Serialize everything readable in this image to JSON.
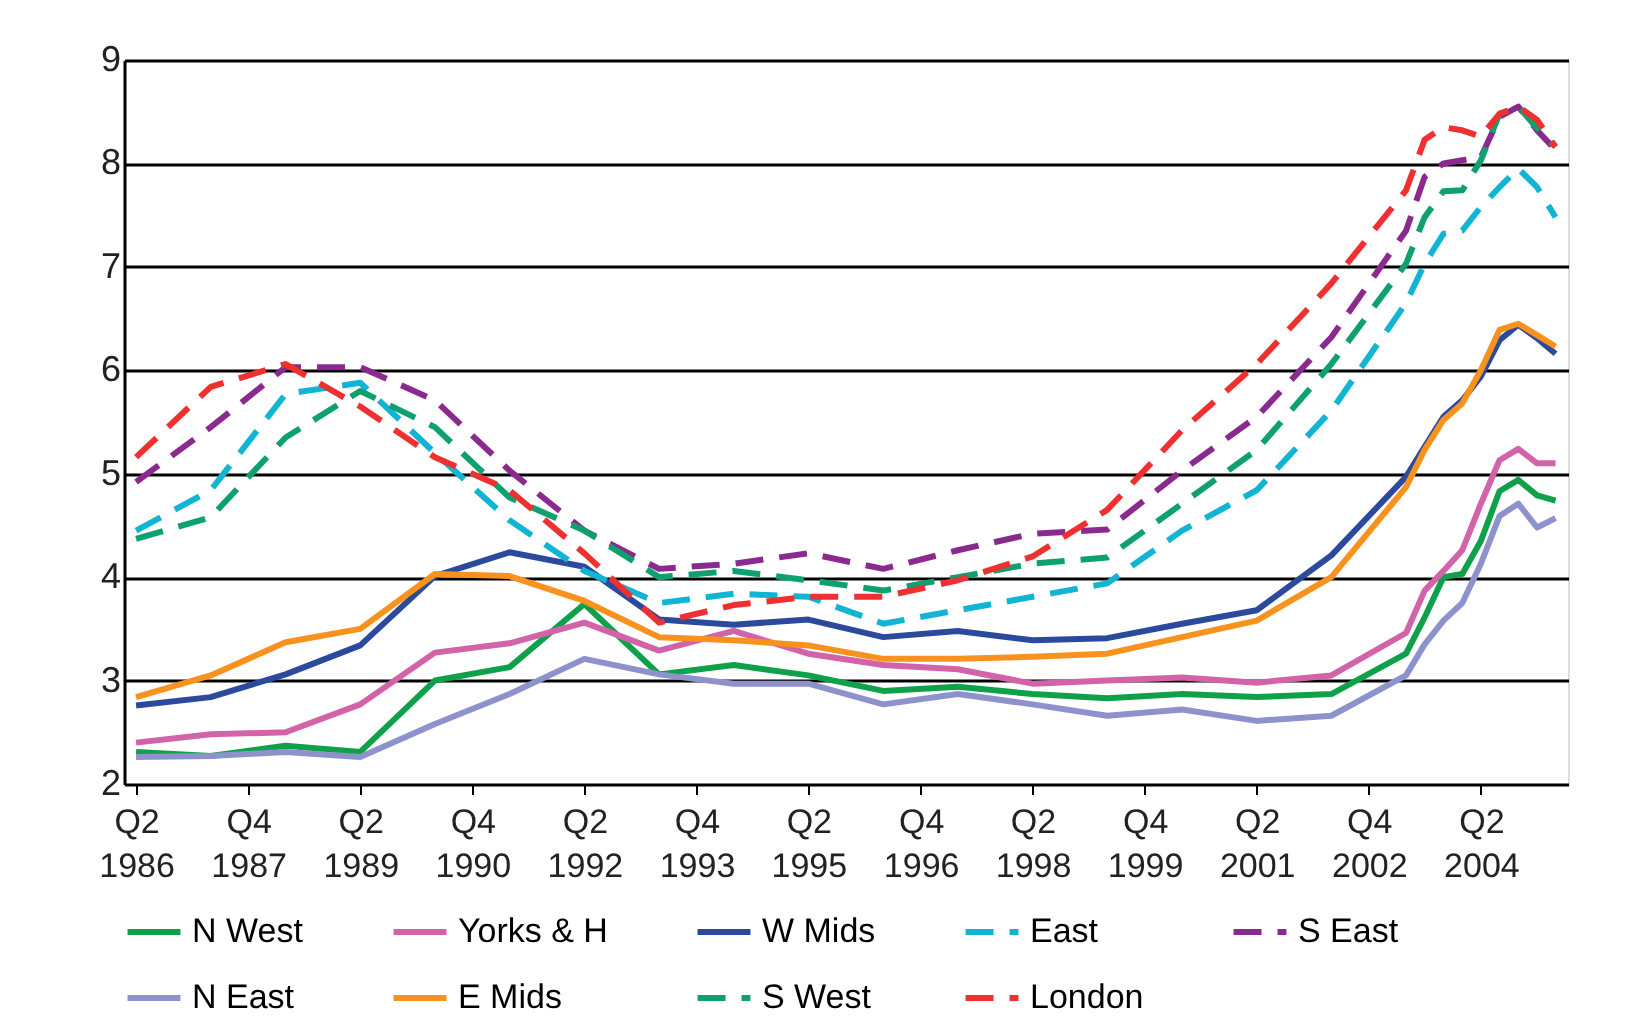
{
  "chart_data": {
    "type": "line",
    "x": [
      "1986-04",
      "1987-04",
      "1988-04",
      "1989-04",
      "1990-04",
      "1991-04",
      "1992-04",
      "1993-04",
      "1994-04",
      "1995-04",
      "1996-04",
      "1997-04",
      "1998-04",
      "1999-04",
      "2000-04",
      "2001-04",
      "2002-04",
      "2003-04",
      "2003-07",
      "2003-10",
      "2004-01",
      "2004-04",
      "2004-07",
      "2004-10",
      "2005-01",
      "2005-04"
    ],
    "xlim": [
      "1986-02",
      "2005-06"
    ],
    "xticks": [
      {
        "value": "1986-04",
        "label": "Q2 1986"
      },
      {
        "value": "1987-10",
        "label": "Q4 1987"
      },
      {
        "value": "1989-04",
        "label": "Q2 1989"
      },
      {
        "value": "1990-10",
        "label": "Q4 1990"
      },
      {
        "value": "1992-04",
        "label": "Q2 1992"
      },
      {
        "value": "1993-10",
        "label": "Q4 1993"
      },
      {
        "value": "1995-04",
        "label": "Q2 1995"
      },
      {
        "value": "1996-10",
        "label": "Q4 1996"
      },
      {
        "value": "1998-04",
        "label": "Q2 1998"
      },
      {
        "value": "1999-10",
        "label": "Q4 1999"
      },
      {
        "value": "2001-04",
        "label": "Q2 2001"
      },
      {
        "value": "2002-10",
        "label": "Q4 2002"
      },
      {
        "value": "2004-04",
        "label": "Q2 2004"
      }
    ],
    "ylim": [
      2,
      9
    ],
    "yticks": [
      2,
      3,
      4,
      5,
      6,
      7,
      8,
      9
    ],
    "grid": "y",
    "legend": "bottom",
    "series": [
      {
        "name": "N West",
        "color": "#0fa04a",
        "line_style": "solid",
        "values": [
          2.31,
          2.27,
          2.37,
          2.31,
          3.0,
          3.13,
          3.74,
          3.06,
          3.15,
          3.05,
          2.9,
          2.94,
          2.87,
          2.83,
          2.87,
          2.84,
          2.87,
          3.26,
          3.61,
          4.0,
          4.03,
          4.35,
          4.83,
          4.94,
          4.79,
          4.74
        ]
      },
      {
        "name": "Yorks & H",
        "color": "#d263a8",
        "line_style": "solid",
        "values": [
          2.4,
          2.48,
          2.5,
          2.77,
          3.27,
          3.36,
          3.56,
          3.29,
          3.48,
          3.26,
          3.15,
          3.11,
          2.97,
          3.0,
          3.03,
          2.98,
          3.05,
          3.46,
          3.87,
          4.06,
          4.26,
          4.71,
          5.13,
          5.24,
          5.1,
          5.1
        ]
      },
      {
        "name": "W Mids",
        "color": "#2b4a9e",
        "line_style": "solid",
        "values": [
          2.76,
          2.84,
          3.06,
          3.34,
          4.01,
          4.24,
          4.1,
          3.59,
          3.54,
          3.59,
          3.42,
          3.48,
          3.39,
          3.41,
          3.55,
          3.68,
          4.21,
          4.97,
          5.26,
          5.55,
          5.71,
          5.94,
          6.29,
          6.44,
          6.31,
          6.16
        ]
      },
      {
        "name": "East",
        "color": "#12b4d4",
        "line_style": "dashed",
        "values": [
          4.45,
          4.84,
          5.77,
          5.88,
          5.2,
          4.55,
          4.06,
          3.75,
          3.84,
          3.81,
          3.55,
          3.68,
          3.81,
          3.94,
          4.45,
          4.84,
          5.61,
          6.65,
          7.03,
          7.32,
          7.35,
          7.58,
          7.77,
          7.95,
          7.77,
          7.48
        ]
      },
      {
        "name": "S East",
        "color": "#8b2a8e",
        "line_style": "dashed",
        "values": [
          4.92,
          5.45,
          6.03,
          6.03,
          5.71,
          5.03,
          4.45,
          4.08,
          4.13,
          4.23,
          4.08,
          4.26,
          4.42,
          4.46,
          5.03,
          5.55,
          6.32,
          7.35,
          7.87,
          8.0,
          8.03,
          8.06,
          8.45,
          8.55,
          8.32,
          8.13
        ]
      },
      {
        "name": "N East",
        "color": "#8e92cc",
        "line_style": "solid",
        "values": [
          2.26,
          2.27,
          2.31,
          2.26,
          2.58,
          2.87,
          3.21,
          3.06,
          2.97,
          2.97,
          2.77,
          2.87,
          2.77,
          2.66,
          2.72,
          2.61,
          2.66,
          3.05,
          3.35,
          3.58,
          3.75,
          4.13,
          4.59,
          4.71,
          4.48,
          4.57
        ]
      },
      {
        "name": "E Mids",
        "color": "#f7921e",
        "line_style": "solid",
        "values": [
          2.84,
          3.05,
          3.37,
          3.5,
          4.03,
          4.01,
          3.77,
          3.42,
          3.39,
          3.34,
          3.21,
          3.21,
          3.23,
          3.26,
          3.42,
          3.58,
          4.0,
          4.87,
          5.23,
          5.52,
          5.68,
          6.0,
          6.39,
          6.45,
          6.34,
          6.23
        ]
      },
      {
        "name": "S West",
        "color": "#0fa070",
        "line_style": "dashed",
        "values": [
          4.37,
          4.58,
          5.35,
          5.8,
          5.45,
          4.77,
          4.45,
          4.0,
          4.06,
          3.97,
          3.87,
          4.0,
          4.13,
          4.19,
          4.71,
          5.23,
          6.06,
          7.03,
          7.48,
          7.73,
          7.74,
          8.03,
          8.48,
          8.55,
          8.34,
          8.16
        ]
      },
      {
        "name": "London",
        "color": "#ee3030",
        "line_style": "dashed",
        "values": [
          5.16,
          5.84,
          6.06,
          5.65,
          5.16,
          4.84,
          4.23,
          3.56,
          3.73,
          3.81,
          3.81,
          3.97,
          4.2,
          4.65,
          5.42,
          6.06,
          6.84,
          7.74,
          8.23,
          8.35,
          8.32,
          8.26,
          8.48,
          8.55,
          8.42,
          8.16
        ]
      }
    ]
  }
}
